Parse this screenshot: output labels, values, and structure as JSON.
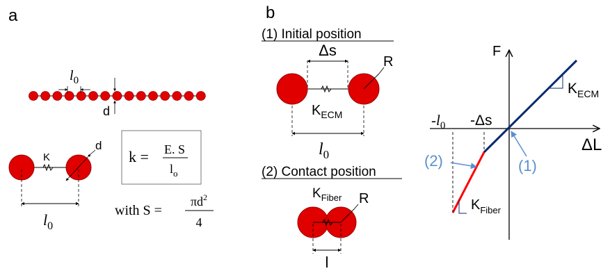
{
  "colors": {
    "bead": "#e00000",
    "bead_stroke": "#9a0000",
    "line": "#000000",
    "ecm_line": "#0b2a6f",
    "fiber_line": "#ff0000",
    "annotation": "#5b8fd0"
  },
  "panel_a": {
    "letter": "a",
    "l0": "l",
    "l0_sub": "0",
    "d": "d",
    "k": "K",
    "formula": {
      "lhs": "k =",
      "num": "E. S",
      "den": "l",
      "den_sub": "o"
    },
    "with_s": {
      "lhs": "with  S =",
      "num": "πd",
      "num_sup": "2",
      "den": "4"
    }
  },
  "panel_b": {
    "letter": "b",
    "initial_title": "(1) Initial position",
    "contact_title": "(2) Contact position",
    "delta_s": "Δs",
    "r": "R",
    "k_ecm": "K",
    "k_ecm_sub": "ECM",
    "l0": "l",
    "l0_sub": "0",
    "k_fiber": "K",
    "k_fiber_sub": "Fiber",
    "l": "l"
  },
  "graph": {
    "y_label": "F",
    "x_label": "ΔL",
    "tick_neg_l0": "-l",
    "tick_neg_l0_sub": "0",
    "tick_neg_ds": "-Δs",
    "k_ecm": "K",
    "k_ecm_sub": "ECM",
    "k_fiber": "K",
    "k_fiber_sub": "Fiber",
    "point1": "(1)",
    "point2": "(2)"
  }
}
